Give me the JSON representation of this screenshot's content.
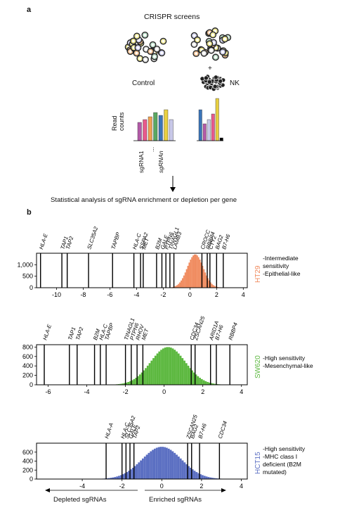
{
  "panel_a": {
    "label": "a",
    "title": "CRISPR screens",
    "control_label": "Control",
    "plus": "+",
    "nk_label": "NK",
    "read_counts_label": [
      "Read",
      "counts"
    ],
    "sgrna_labels": [
      "sgRNA1",
      "...",
      "sgRNAn"
    ],
    "arrow_caption": "Statistical analysis of sgRNA enrichment or depletion per gene",
    "bar_colors": [
      "#b35aa8",
      "#e85a8c",
      "#f0a050",
      "#5aa862",
      "#3a74b8",
      "#e8d040",
      "#c8c8e8"
    ]
  },
  "panel_b": {
    "label": "b",
    "depleted_label": "Depleted sgRNAs",
    "enriched_label": "Enriched sgRNAs"
  },
  "chart_data": [
    {
      "type": "histogram",
      "cell_line": "HT29",
      "color": "#f08a5d",
      "notes": [
        "-Intermediate",
        "sensitivity",
        "-Epithelial-like"
      ],
      "xlim": [
        -11.5,
        4.3
      ],
      "ylim": [
        0,
        1500
      ],
      "xticks": [
        -10,
        -8,
        -6,
        -4,
        -2,
        0,
        2,
        4
      ],
      "yticks": [
        0,
        500,
        1000
      ],
      "ytick_labels": [
        "0",
        "500",
        "1,000"
      ],
      "center": 0.4,
      "sigma": 0.6,
      "peak": 1450,
      "genes": [
        {
          "name": "HLA-E",
          "x": -11.2
        },
        {
          "name": "TAP1",
          "x": -9.6
        },
        {
          "name": "TAP2",
          "x": -9.2
        },
        {
          "name": "SLC35A2",
          "x": -7.6
        },
        {
          "name": "TAPBP",
          "x": -5.8
        },
        {
          "name": "HLA-C",
          "x": -4.2
        },
        {
          "name": "SSPA2",
          "x": -3.7
        },
        {
          "name": "MET",
          "x": -3.5
        },
        {
          "name": "B2M",
          "x": -2.5
        },
        {
          "name": "GALE",
          "x": -2.1
        },
        {
          "name": "PTPN6",
          "x": -1.8
        },
        {
          "name": "TINAGL1",
          "x": -1.5
        },
        {
          "name": "LAMB3",
          "x": -1.2
        },
        {
          "name": "CROCC",
          "x": 0.9
        },
        {
          "name": "RBBP4",
          "x": 1.3
        },
        {
          "name": "CTY2",
          "x": 1.5
        },
        {
          "name": "BAG2",
          "x": 2.0
        },
        {
          "name": "B7-H6",
          "x": 2.5
        }
      ]
    },
    {
      "type": "histogram",
      "cell_line": "SW620",
      "color": "#5cb83f",
      "notes": [
        "-High sensitivity",
        "-Mesenchymal-like"
      ],
      "xlim": [
        -6.6,
        4.3
      ],
      "ylim": [
        0,
        850
      ],
      "xticks": [
        -6,
        -4,
        -2,
        0,
        2,
        4
      ],
      "yticks": [
        0,
        200,
        400,
        600,
        800
      ],
      "ytick_labels": [
        "0",
        "200",
        "400",
        "600",
        "800"
      ],
      "center": 0.2,
      "sigma": 0.9,
      "peak": 800,
      "genes": [
        {
          "name": "HLA-E",
          "x": -6.2
        },
        {
          "name": "TAP1",
          "x": -4.9
        },
        {
          "name": "TAP2",
          "x": -4.5
        },
        {
          "name": "B2M",
          "x": -3.6
        },
        {
          "name": "HLA-C",
          "x": -3.3
        },
        {
          "name": "TAPBP",
          "x": -3.0
        },
        {
          "name": "TINAGL1",
          "x": -2.0
        },
        {
          "name": "PTPN6",
          "x": -1.7
        },
        {
          "name": "RHOV",
          "x": -1.4
        },
        {
          "name": "MET",
          "x": -1.1
        },
        {
          "name": "CDC34",
          "x": 1.4
        },
        {
          "name": "ZSCAN25",
          "x": 1.6
        },
        {
          "name": "ARID1A",
          "x": 2.4
        },
        {
          "name": "B7-H6",
          "x": 2.7
        },
        {
          "name": "RBBP4",
          "x": 3.4
        }
      ]
    },
    {
      "type": "histogram",
      "cell_line": "HCT15",
      "color": "#5b6fc2",
      "notes": [
        "-High sensitivity",
        "-MHC class I",
        "deficient (B2M",
        "mutated)"
      ],
      "xlim": [
        -6.3,
        4.3
      ],
      "ylim": [
        0,
        800
      ],
      "xticks": [
        -4,
        -2,
        0,
        2,
        4
      ],
      "yticks": [
        0,
        200,
        400,
        600
      ],
      "ytick_labels": [
        "0",
        "200",
        "400",
        "600"
      ],
      "center": 0.0,
      "sigma": 1.0,
      "peak": 720,
      "genes": [
        {
          "name": "HLA-A",
          "x": -2.8
        },
        {
          "name": "HLA-C",
          "x": -2.0
        },
        {
          "name": "SLC35A2",
          "x": -1.8
        },
        {
          "name": "GALE",
          "x": -1.6
        },
        {
          "name": "TAP2",
          "x": -1.4
        },
        {
          "name": "ZSCAN25",
          "x": 1.3
        },
        {
          "name": "BAG2",
          "x": 1.5
        },
        {
          "name": "B7-H6",
          "x": 1.9
        },
        {
          "name": "CDC34",
          "x": 2.9
        }
      ]
    }
  ]
}
